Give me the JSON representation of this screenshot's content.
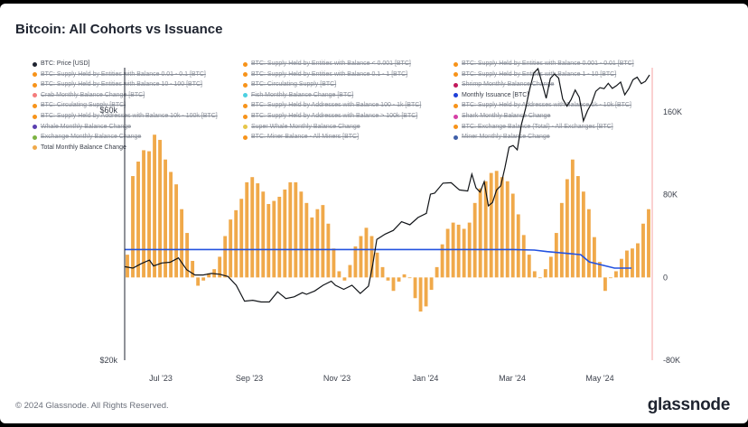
{
  "title": "Bitcoin: All Cohorts vs Issuance",
  "footer": {
    "copyright": "© 2024 Glassnode. All Rights Reserved.",
    "brand": "glassnode"
  },
  "legend": [
    {
      "label": "BTC: Price [USD]",
      "color": "#1f2430",
      "active": true
    },
    {
      "label": "BTC: Supply Held by Entities with Balance < 0.001 [BTC]",
      "color": "#f7931a",
      "active": false
    },
    {
      "label": "BTC: Supply Held by Entities with Balance 0.001 - 0.01 [BTC]",
      "color": "#f7931a",
      "active": false
    },
    {
      "label": "BTC: Supply Held by Entities with Balance 0.01 - 0.1 [BTC]",
      "color": "#f7931a",
      "active": false
    },
    {
      "label": "BTC: Supply Held by Entities with Balance 0.1 - 1 [BTC]",
      "color": "#f7931a",
      "active": false
    },
    {
      "label": "BTC: Supply Held by Entities with Balance 1 - 10 [BTC]",
      "color": "#f7931a",
      "active": false
    },
    {
      "label": "BTC: Supply Held by Entities with Balance 10 - 100 [BTC]",
      "color": "#f7931a",
      "active": false
    },
    {
      "label": "BTC: Circulating Supply [BTC]",
      "color": "#f7931a",
      "active": false
    },
    {
      "label": "Shrimp Monthly Balance Change",
      "color": "#c2185b",
      "active": false
    },
    {
      "label": "Crab Monthly Balance Change [BTC]",
      "color": "#f47c7c",
      "active": false
    },
    {
      "label": "Fish Monthly Balance Change [BTC]",
      "color": "#4dd0e1",
      "active": false
    },
    {
      "label": "Monthly Issuance [BTC]",
      "color": "#1e3fd8",
      "active": true
    },
    {
      "label": "BTC: Circulating Supply [BTC]",
      "color": "#f7931a",
      "active": false
    },
    {
      "label": "BTC: Supply Held by Addresses with Balance 100 - 1k [BTC]",
      "color": "#f7931a",
      "active": false
    },
    {
      "label": "BTC: Supply Held by Addresses with Balance 1k - 10k [BTC]",
      "color": "#f7931a",
      "active": false
    },
    {
      "label": "BTC: Supply Held by Addresses with Balance 10k - 100k [BTC]",
      "color": "#f7931a",
      "active": false
    },
    {
      "label": "BTC: Supply Held by Addresses with Balance > 100k [BTC]",
      "color": "#f7931a",
      "active": false
    },
    {
      "label": "Shark Monthly Balance Change",
      "color": "#d63fa6",
      "active": false
    },
    {
      "label": "Whale Monthly Balance Change",
      "color": "#5a3fb0",
      "active": false
    },
    {
      "label": "Super Whale Monthly Balance Change",
      "color": "#e6c64a",
      "active": false
    },
    {
      "label": "BTC: Exchange Balance (Total) - All Exchanges [BTC]",
      "color": "#f7931a",
      "active": false
    },
    {
      "label": "Exchange Monthly Balance Change",
      "color": "#7cb342",
      "active": false
    },
    {
      "label": "BTC: Miner Balance - All Miners [BTC]",
      "color": "#f7931a",
      "active": false
    },
    {
      "label": "Miner Monthly Balance Change",
      "color": "#3f5fa8",
      "active": false
    },
    {
      "label": "Total Monthly Balance Change",
      "color": "#f0a94a",
      "active": true
    }
  ],
  "chart_data": {
    "type": "bar",
    "title": "Bitcoin: All Cohorts vs Issuance",
    "x_ticks": [
      "Jul '23",
      "Sep '23",
      "Nov '23",
      "Jan '24",
      "Mar '24",
      "May '24"
    ],
    "left_axis": {
      "ticks": [
        "$60k",
        "$20k"
      ],
      "scale": "log"
    },
    "right_axis": {
      "ticks": [
        "160K",
        "80K",
        "0",
        "-80K"
      ],
      "ylim": [
        -80000,
        160000
      ]
    },
    "series": [
      {
        "name": "Total Monthly Balance Change",
        "type": "bar",
        "axis": "right",
        "values": [
          22000,
          98000,
          112000,
          123000,
          122000,
          138000,
          133000,
          114000,
          102000,
          90000,
          66000,
          43000,
          16000,
          -8000,
          -3000,
          4000,
          8000,
          20000,
          40000,
          56000,
          65000,
          76000,
          92000,
          97000,
          91000,
          83000,
          71000,
          74000,
          78000,
          85000,
          92000,
          92000,
          83000,
          72000,
          58000,
          66000,
          70000,
          52000,
          28000,
          6000,
          -3000,
          12000,
          30000,
          40000,
          48000,
          40000,
          24000,
          10000,
          -3000,
          -13000,
          -4000,
          3000,
          0,
          -20000,
          -33000,
          -28000,
          -12000,
          10000,
          32000,
          47000,
          53000,
          51000,
          47000,
          53000,
          72000,
          86000,
          93000,
          101000,
          103000,
          97000,
          93000,
          81000,
          61000,
          41000,
          22000,
          6000,
          0,
          8000,
          20000,
          43000,
          72000,
          95000,
          114000,
          98000,
          83000,
          66000,
          39000,
          15000,
          -13000,
          0,
          6000,
          18000,
          26000,
          28000,
          33000,
          52000,
          66000
        ]
      },
      {
        "name": "Monthly Issuance [BTC]",
        "type": "line",
        "axis": "right",
        "points": [
          [
            0,
            27000
          ],
          [
            92,
            27000
          ],
          [
            97,
            26500
          ],
          [
            100,
            25000
          ],
          [
            108,
            22000
          ],
          [
            110,
            15000
          ],
          [
            116,
            9000
          ],
          [
            120,
            9000
          ]
        ]
      },
      {
        "name": "BTC: Price [USD]",
        "type": "line",
        "axis": "left",
        "unit": "USD",
        "points": [
          [
            0,
            30300
          ],
          [
            2,
            30100
          ],
          [
            4,
            30700
          ],
          [
            6,
            31200
          ],
          [
            7,
            30400
          ],
          [
            9,
            30800
          ],
          [
            11,
            30900
          ],
          [
            13,
            31500
          ],
          [
            15,
            29900
          ],
          [
            17,
            29200
          ],
          [
            19,
            29200
          ],
          [
            21,
            29400
          ],
          [
            23,
            29300
          ],
          [
            25,
            29000
          ],
          [
            27,
            27900
          ],
          [
            29,
            26000
          ],
          [
            31,
            26100
          ],
          [
            33,
            25900
          ],
          [
            35,
            25900
          ],
          [
            37,
            27100
          ],
          [
            39,
            26300
          ],
          [
            41,
            26500
          ],
          [
            43,
            27000
          ],
          [
            44,
            26800
          ],
          [
            46,
            27200
          ],
          [
            48,
            27900
          ],
          [
            50,
            28400
          ],
          [
            51,
            27900
          ],
          [
            53,
            27400
          ],
          [
            55,
            27900
          ],
          [
            57,
            26900
          ],
          [
            59,
            27800
          ],
          [
            60,
            30500
          ],
          [
            61,
            34200
          ],
          [
            63,
            35000
          ],
          [
            65,
            35600
          ],
          [
            67,
            37000
          ],
          [
            69,
            36500
          ],
          [
            71,
            37700
          ],
          [
            73,
            38400
          ],
          [
            74,
            41800
          ],
          [
            75,
            42000
          ],
          [
            77,
            43900
          ],
          [
            79,
            44000
          ],
          [
            81,
            42600
          ],
          [
            83,
            42400
          ],
          [
            84,
            45700
          ],
          [
            85,
            43000
          ],
          [
            86,
            42200
          ],
          [
            87,
            44200
          ],
          [
            88,
            39700
          ],
          [
            89,
            40300
          ],
          [
            90,
            42600
          ],
          [
            91,
            43400
          ],
          [
            92,
            47000
          ],
          [
            93,
            51500
          ],
          [
            94,
            51900
          ],
          [
            95,
            50900
          ],
          [
            96,
            57000
          ],
          [
            97,
            61200
          ],
          [
            98,
            66600
          ],
          [
            99,
            71600
          ],
          [
            100,
            73000
          ],
          [
            101,
            68400
          ],
          [
            102,
            64000
          ],
          [
            103,
            69900
          ],
          [
            104,
            71300
          ],
          [
            105,
            70000
          ],
          [
            106,
            63800
          ],
          [
            107,
            61800
          ],
          [
            108,
            63600
          ],
          [
            109,
            66400
          ],
          [
            110,
            64300
          ],
          [
            111,
            57900
          ],
          [
            112,
            60600
          ],
          [
            113,
            62700
          ],
          [
            114,
            66000
          ],
          [
            115,
            67100
          ],
          [
            116,
            66800
          ],
          [
            117,
            68400
          ],
          [
            118,
            66900
          ],
          [
            119,
            67700
          ],
          [
            120,
            68800
          ],
          [
            121,
            65000
          ],
          [
            122,
            66800
          ],
          [
            123,
            69500
          ],
          [
            124,
            70300
          ],
          [
            125,
            68300
          ],
          [
            126,
            69000
          ],
          [
            127,
            71000
          ]
        ]
      }
    ],
    "grid": false
  }
}
